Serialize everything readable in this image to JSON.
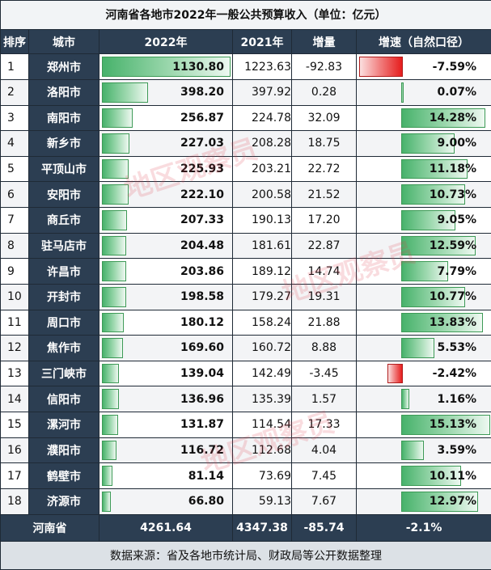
{
  "title": "河南省各地市2022年一般公共预算收入（单位：亿元）",
  "headers": [
    "排序",
    "城市",
    "2022年",
    "2021年",
    "增量",
    "增速（自然口径）"
  ],
  "footer": {
    "label": "河南省",
    "v2022": "4261.64",
    "v2021": "4347.38",
    "increase": "-85.74",
    "rate": "-2.1%"
  },
  "source": "数据来源：省及各地市统计局、财政局等公开数据整理",
  "watermark": "地区观察员",
  "colors": {
    "header_bg": "#2c3e52",
    "positive_bar": "#47b26b",
    "negative_bar": "#e61d1d"
  },
  "chart_data": {
    "type": "table",
    "title": "河南省各地市2022年一般公共预算收入（单位：亿元）",
    "columns": [
      "排序",
      "城市",
      "2022年",
      "2021年",
      "增量",
      "增速（自然口径）"
    ],
    "rows": [
      {
        "rank": "1",
        "city": "郑州市",
        "v2022": "1130.80",
        "v2021": "1223.63",
        "increase": "-92.83",
        "rate": "-7.59%",
        "rate_value": -7.59,
        "v2022_value": 1130.8
      },
      {
        "rank": "2",
        "city": "洛阳市",
        "v2022": "398.20",
        "v2021": "397.92",
        "increase": "0.28",
        "rate": "0.07%",
        "rate_value": 0.07,
        "v2022_value": 398.2
      },
      {
        "rank": "3",
        "city": "南阳市",
        "v2022": "256.87",
        "v2021": "224.78",
        "increase": "32.09",
        "rate": "14.28%",
        "rate_value": 14.28,
        "v2022_value": 256.87
      },
      {
        "rank": "4",
        "city": "新乡市",
        "v2022": "227.03",
        "v2021": "208.28",
        "increase": "18.75",
        "rate": "9.00%",
        "rate_value": 9.0,
        "v2022_value": 227.03
      },
      {
        "rank": "5",
        "city": "平顶山市",
        "v2022": "225.93",
        "v2021": "203.21",
        "increase": "22.72",
        "rate": "11.18%",
        "rate_value": 11.18,
        "v2022_value": 225.93
      },
      {
        "rank": "6",
        "city": "安阳市",
        "v2022": "222.10",
        "v2021": "200.58",
        "increase": "21.52",
        "rate": "10.73%",
        "rate_value": 10.73,
        "v2022_value": 222.1
      },
      {
        "rank": "7",
        "city": "商丘市",
        "v2022": "207.33",
        "v2021": "190.13",
        "increase": "17.20",
        "rate": "9.05%",
        "rate_value": 9.05,
        "v2022_value": 207.33
      },
      {
        "rank": "8",
        "city": "驻马店市",
        "v2022": "204.48",
        "v2021": "181.61",
        "increase": "22.87",
        "rate": "12.59%",
        "rate_value": 12.59,
        "v2022_value": 204.48
      },
      {
        "rank": "9",
        "city": "许昌市",
        "v2022": "203.86",
        "v2021": "189.12",
        "increase": "14.74",
        "rate": "7.79%",
        "rate_value": 7.79,
        "v2022_value": 203.86
      },
      {
        "rank": "10",
        "city": "开封市",
        "v2022": "198.58",
        "v2021": "179.27",
        "increase": "19.31",
        "rate": "10.77%",
        "rate_value": 10.77,
        "v2022_value": 198.58
      },
      {
        "rank": "11",
        "city": "周口市",
        "v2022": "180.12",
        "v2021": "158.24",
        "increase": "21.88",
        "rate": "13.83%",
        "rate_value": 13.83,
        "v2022_value": 180.12
      },
      {
        "rank": "12",
        "city": "焦作市",
        "v2022": "169.60",
        "v2021": "160.72",
        "increase": "8.88",
        "rate": "5.53%",
        "rate_value": 5.53,
        "v2022_value": 169.6
      },
      {
        "rank": "13",
        "city": "三门峡市",
        "v2022": "139.04",
        "v2021": "142.49",
        "increase": "-3.45",
        "rate": "-2.42%",
        "rate_value": -2.42,
        "v2022_value": 139.04
      },
      {
        "rank": "14",
        "city": "信阳市",
        "v2022": "136.96",
        "v2021": "135.39",
        "increase": "1.57",
        "rate": "1.16%",
        "rate_value": 1.16,
        "v2022_value": 136.96
      },
      {
        "rank": "15",
        "city": "漯河市",
        "v2022": "131.87",
        "v2021": "114.54",
        "increase": "17.33",
        "rate": "15.13%",
        "rate_value": 15.13,
        "v2022_value": 131.87
      },
      {
        "rank": "16",
        "city": "濮阳市",
        "v2022": "116.72",
        "v2021": "112.68",
        "increase": "4.04",
        "rate": "3.59%",
        "rate_value": 3.59,
        "v2022_value": 116.72
      },
      {
        "rank": "17",
        "city": "鹤壁市",
        "v2022": "81.14",
        "v2021": "73.69",
        "increase": "7.45",
        "rate": "10.11%",
        "rate_value": 10.11,
        "v2022_value": 81.14
      },
      {
        "rank": "18",
        "city": "济源市",
        "v2022": "66.80",
        "v2021": "59.13",
        "increase": "7.67",
        "rate": "12.97%",
        "rate_value": 12.97,
        "v2022_value": 66.8
      }
    ]
  }
}
